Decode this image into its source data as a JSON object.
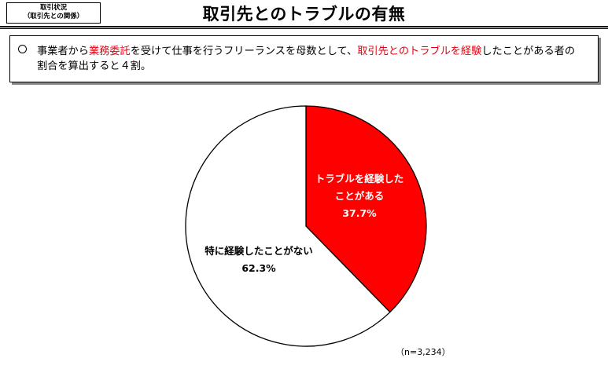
{
  "header": {
    "tag_line1": "取引状況",
    "tag_line2": "（取引先との関係）",
    "title": "取引先とのトラブルの有無"
  },
  "summary": {
    "part1": "事業者から",
    "highlight1": "業務委託",
    "part2": "を受けて仕事を行うフリーランスを母数として、",
    "highlight2": "取引先とのトラブルを経験",
    "part3": "したことがある者の",
    "line2": "割合を算出すると４割。"
  },
  "colors": {
    "accent": "#e60012",
    "slice_yes": "#ff0000",
    "slice_no": "#ffffff"
  },
  "chart_data": {
    "type": "pie",
    "slices": [
      {
        "label_line1": "トラブルを経験した",
        "label_line2": "ことがある",
        "value": 37.7,
        "value_label": "37.7%",
        "color": "#ff0000"
      },
      {
        "label_line1": "特に経験したことがない",
        "label_line2": "",
        "value": 62.3,
        "value_label": "62.3%",
        "color": "#ffffff"
      }
    ],
    "note": "（n=3,234）"
  }
}
